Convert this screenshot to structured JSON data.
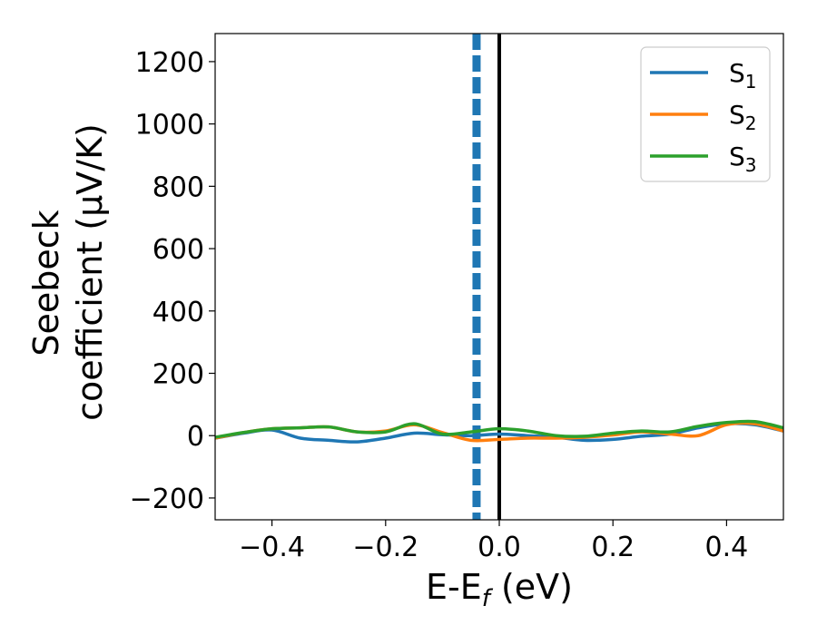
{
  "chart_data": {
    "type": "line",
    "xlabel": {
      "main": "E-E",
      "sub": "f",
      "unit": " (eV)"
    },
    "ylabel": {
      "line1": "Seebeck",
      "line2": "coefficient  (μV/K)"
    },
    "xlim": [
      -0.5,
      0.5
    ],
    "ylim": [
      -270,
      1290
    ],
    "xticks": [
      -0.4,
      -0.2,
      0.0,
      0.2,
      0.4
    ],
    "xtick_labels": [
      "−0.4",
      "−0.2",
      "0.0",
      "0.2",
      "0.4"
    ],
    "yticks": [
      -200,
      0,
      200,
      400,
      600,
      800,
      1000,
      1200
    ],
    "ytick_labels": [
      "−200",
      "0",
      "200",
      "400",
      "600",
      "800",
      "1000",
      "1200"
    ],
    "grid": false,
    "legend_position": "top-right",
    "vertical_lines": [
      {
        "x": -0.04,
        "style": "dashed",
        "color": "#1f77b4"
      },
      {
        "x": 0.0,
        "style": "solid",
        "color": "#000000"
      }
    ],
    "series": [
      {
        "name": "S",
        "sub": "1",
        "color": "#1f77b4",
        "x": [
          -0.5,
          -0.45,
          -0.4,
          -0.35,
          -0.3,
          -0.25,
          -0.2,
          -0.15,
          -0.1,
          -0.05,
          0.0,
          0.05,
          0.1,
          0.15,
          0.2,
          0.25,
          0.3,
          0.35,
          0.4,
          0.45,
          0.5
        ],
        "y": [
          -8,
          8,
          18,
          -8,
          -15,
          -20,
          -8,
          8,
          3,
          0,
          5,
          0,
          -5,
          -15,
          -12,
          -2,
          5,
          25,
          38,
          35,
          15
        ]
      },
      {
        "name": "S",
        "sub": "2",
        "color": "#ff7f0e",
        "x": [
          -0.5,
          -0.45,
          -0.4,
          -0.35,
          -0.3,
          -0.25,
          -0.2,
          -0.15,
          -0.1,
          -0.05,
          0.0,
          0.05,
          0.1,
          0.15,
          0.2,
          0.25,
          0.3,
          0.35,
          0.4,
          0.45,
          0.5
        ],
        "y": [
          -8,
          10,
          22,
          25,
          28,
          12,
          15,
          35,
          10,
          -15,
          -12,
          -8,
          -8,
          -5,
          2,
          12,
          5,
          0,
          35,
          38,
          15
        ]
      },
      {
        "name": "S",
        "sub": "3",
        "color": "#2ca02c",
        "x": [
          -0.5,
          -0.45,
          -0.4,
          -0.35,
          -0.3,
          -0.25,
          -0.2,
          -0.15,
          -0.1,
          -0.05,
          0.0,
          0.05,
          0.1,
          0.15,
          0.2,
          0.25,
          0.3,
          0.35,
          0.4,
          0.45,
          0.5
        ],
        "y": [
          -5,
          10,
          22,
          25,
          28,
          12,
          12,
          38,
          5,
          12,
          22,
          15,
          0,
          -2,
          8,
          15,
          12,
          30,
          42,
          45,
          25
        ]
      }
    ]
  }
}
